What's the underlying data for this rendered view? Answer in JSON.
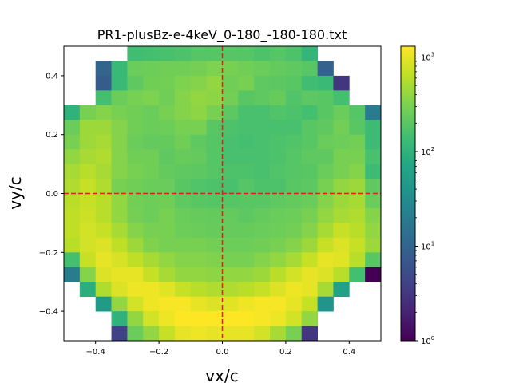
{
  "chart_data": {
    "type": "heatmap",
    "title": "PR1-plusBz-e-4keV_0-180_-180-180.txt",
    "xlabel": "vx/c",
    "ylabel": "vy/c",
    "xlim": [
      -0.5,
      0.5
    ],
    "ylim": [
      -0.5,
      0.5
    ],
    "bins": 20,
    "x_ticks": [
      -0.4,
      -0.2,
      0.0,
      0.2,
      0.4
    ],
    "x_tick_labels": [
      "−0.4",
      "−0.2",
      "0.0",
      "0.2",
      "0.4"
    ],
    "y_ticks": [
      -0.4,
      -0.2,
      0.0,
      0.2,
      0.4
    ],
    "y_tick_labels": [
      "−0.4",
      "−0.2",
      "0.0",
      "0.2",
      "0.4"
    ],
    "colorbar": {
      "scale": "log",
      "range": [
        1,
        1300
      ],
      "colormap": "viridis",
      "ticks": [
        1,
        10,
        100,
        1000
      ],
      "tick_labels": [
        {
          "base": "10",
          "exp": "0"
        },
        {
          "base": "10",
          "exp": "1"
        },
        {
          "base": "10",
          "exp": "2"
        },
        {
          "base": "10",
          "exp": "3"
        }
      ]
    },
    "reference_lines": {
      "color": "#e41a1c",
      "style": "dashed",
      "x": 0.0,
      "y": 0.0
    },
    "grid": false,
    "rows_top_to_bottom": [
      [
        null,
        null,
        null,
        null,
        140,
        150,
        160,
        170,
        190,
        190,
        190,
        190,
        170,
        190,
        170,
        110,
        null,
        null,
        null,
        null
      ],
      [
        null,
        null,
        10,
        120,
        250,
        260,
        270,
        270,
        290,
        320,
        300,
        270,
        250,
        230,
        220,
        200,
        9,
        null,
        null,
        null
      ],
      [
        null,
        null,
        8,
        120,
        220,
        270,
        280,
        320,
        350,
        400,
        270,
        300,
        220,
        210,
        200,
        140,
        120,
        3,
        null,
        null
      ],
      [
        null,
        null,
        150,
        250,
        300,
        320,
        270,
        350,
        400,
        380,
        280,
        200,
        220,
        240,
        180,
        210,
        200,
        150,
        null,
        null
      ],
      [
        100,
        300,
        350,
        300,
        270,
        250,
        300,
        350,
        380,
        300,
        210,
        160,
        160,
        180,
        170,
        150,
        200,
        250,
        190,
        20
      ],
      [
        250,
        450,
        450,
        350,
        270,
        250,
        260,
        300,
        300,
        200,
        170,
        160,
        160,
        160,
        160,
        200,
        220,
        280,
        200,
        130
      ],
      [
        300,
        450,
        500,
        350,
        250,
        230,
        230,
        270,
        220,
        190,
        160,
        150,
        160,
        170,
        180,
        200,
        250,
        260,
        280,
        130
      ],
      [
        400,
        500,
        550,
        350,
        270,
        270,
        220,
        240,
        230,
        190,
        160,
        160,
        160,
        170,
        190,
        220,
        220,
        300,
        300,
        160
      ],
      [
        500,
        600,
        500,
        350,
        300,
        270,
        230,
        220,
        210,
        190,
        170,
        170,
        160,
        180,
        190,
        200,
        250,
        300,
        350,
        130
      ],
      [
        550,
        700,
        550,
        300,
        270,
        250,
        250,
        200,
        180,
        170,
        160,
        190,
        170,
        170,
        200,
        210,
        300,
        400,
        450,
        220
      ],
      [
        600,
        700,
        600,
        400,
        280,
        260,
        270,
        220,
        200,
        190,
        190,
        200,
        200,
        220,
        230,
        250,
        350,
        450,
        500,
        250
      ],
      [
        650,
        750,
        600,
        400,
        290,
        260,
        300,
        250,
        240,
        230,
        230,
        210,
        230,
        250,
        260,
        300,
        400,
        500,
        550,
        350
      ],
      [
        650,
        800,
        700,
        500,
        350,
        300,
        300,
        260,
        250,
        240,
        240,
        240,
        250,
        260,
        280,
        350,
        500,
        700,
        600,
        400
      ],
      [
        600,
        800,
        900,
        650,
        450,
        330,
        300,
        300,
        300,
        280,
        260,
        260,
        270,
        300,
        350,
        450,
        700,
        900,
        700,
        450
      ],
      [
        150,
        700,
        1000,
        850,
        650,
        500,
        400,
        350,
        350,
        330,
        300,
        300,
        350,
        400,
        500,
        700,
        1000,
        950,
        600,
        200
      ],
      [
        20,
        350,
        900,
        1000,
        1000,
        700,
        500,
        400,
        400,
        380,
        400,
        400,
        450,
        600,
        800,
        1000,
        900,
        600,
        150,
        0.5
      ],
      [
        null,
        90,
        550,
        900,
        1100,
        1100,
        950,
        700,
        600,
        550,
        550,
        600,
        700,
        900,
        1100,
        1000,
        500,
        60,
        null,
        null
      ],
      [
        null,
        null,
        50,
        400,
        800,
        1100,
        1200,
        1200,
        1000,
        900,
        950,
        1100,
        1200,
        1200,
        1000,
        700,
        40,
        null,
        null,
        null
      ],
      [
        null,
        null,
        null,
        100,
        400,
        800,
        1100,
        1300,
        1300,
        1300,
        1300,
        1300,
        1200,
        1100,
        800,
        400,
        null,
        null,
        null,
        null
      ],
      [
        null,
        null,
        null,
        4,
        250,
        400,
        700,
        1000,
        1100,
        1000,
        1000,
        1000,
        800,
        500,
        300,
        3,
        null,
        null,
        null,
        null
      ]
    ]
  }
}
